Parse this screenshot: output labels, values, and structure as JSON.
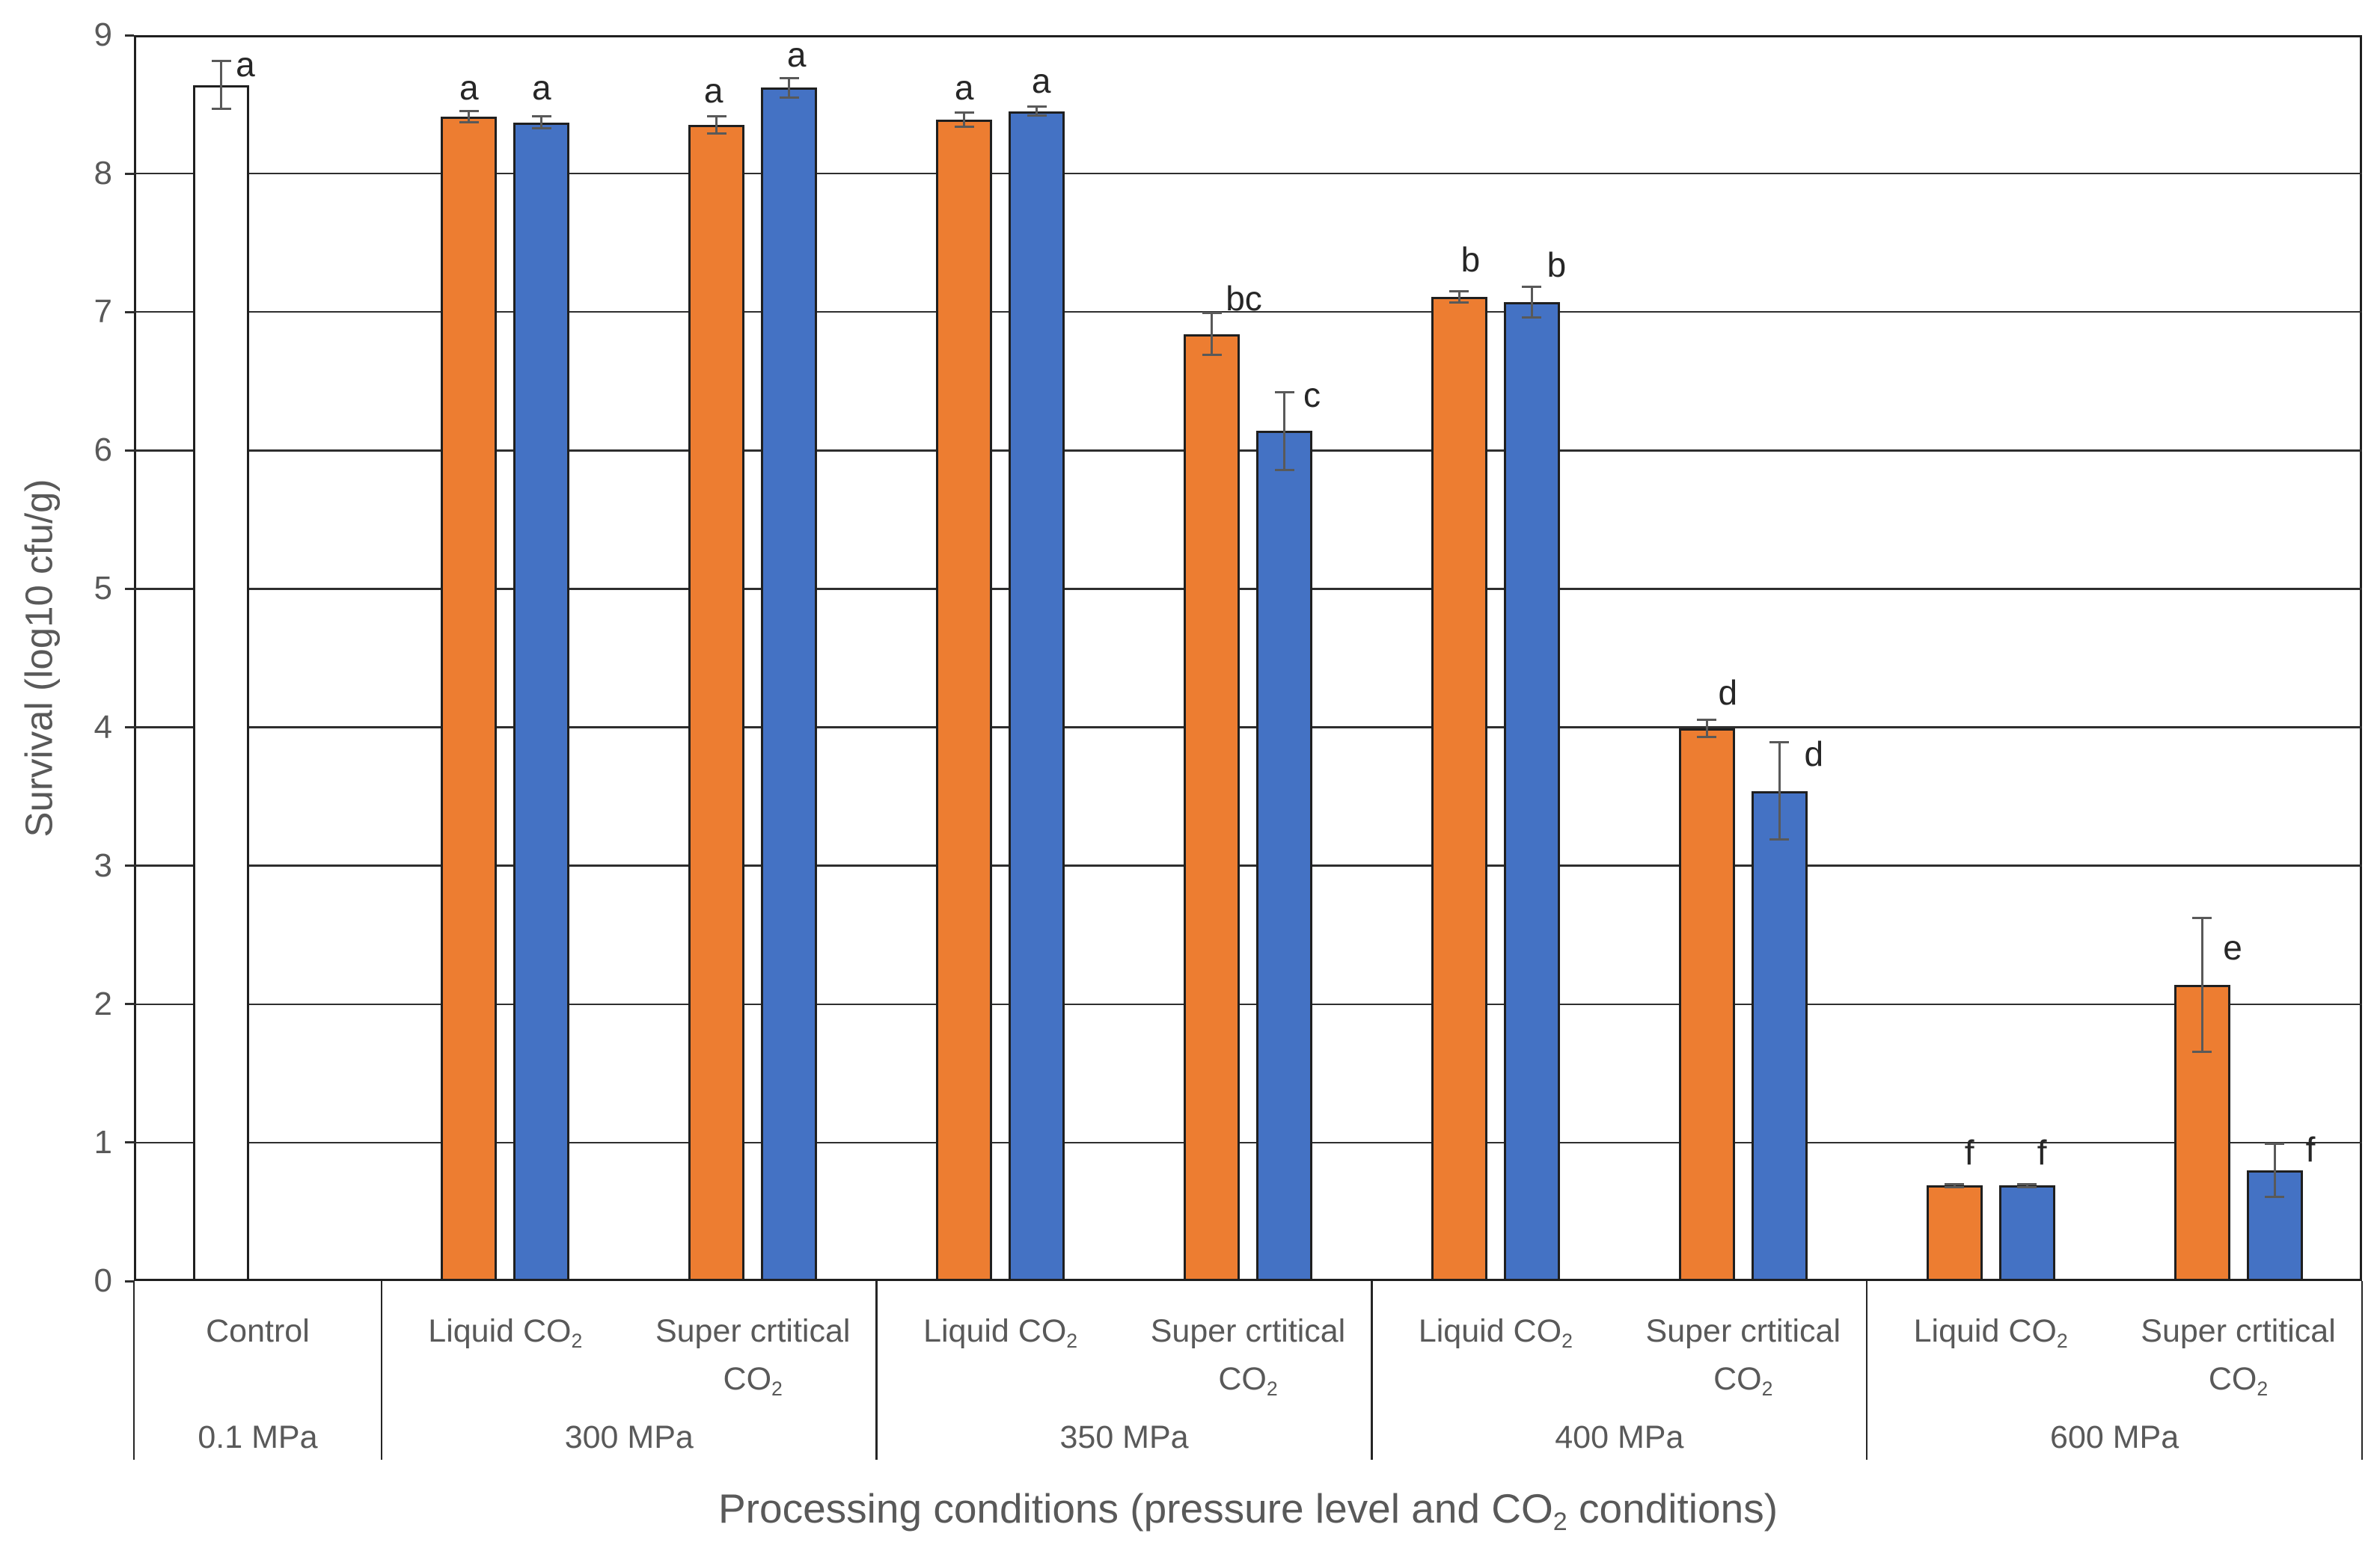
{
  "chart_data": {
    "type": "bar",
    "title": "",
    "ylabel": "Survival (log10 cfu/g)",
    "xlabel": "Processing conditions (pressure level and CO2 conditions)",
    "ylim": [
      0,
      9
    ],
    "yticks": [
      0,
      1,
      2,
      3,
      4,
      5,
      6,
      7,
      8,
      9
    ],
    "grid": true,
    "legend_position": "none",
    "colors": {
      "orange_series": "#ED7D31",
      "blue_series": "#4472C4",
      "control": "#FFFFFF",
      "bar_border": "#1F1F1F",
      "error_bar": "#595959",
      "gridline": "#2E2E2E",
      "text": "#595959",
      "letter": "#262626"
    },
    "groups": [
      {
        "pressure": "0.1 MPa",
        "conditions": [
          {
            "label_lines": [
              "Control"
            ],
            "bars": [
              {
                "fill": "control",
                "value": 8.64,
                "err": 0.18,
                "letter": "a",
                "letter_dx": 32,
                "letter_y": 8.79
              }
            ]
          }
        ]
      },
      {
        "pressure": "300 MPa",
        "conditions": [
          {
            "label_lines": [
              "Liquid CO2"
            ],
            "bars": [
              {
                "fill": "orange_series",
                "value": 8.41,
                "err": 0.05,
                "letter": "a",
                "letter_dx": 0,
                "letter_y": 8.62
              },
              {
                "fill": "blue_series",
                "value": 8.37,
                "err": 0.05,
                "letter": "a",
                "letter_dx": 0,
                "letter_y": 8.62
              }
            ]
          },
          {
            "label_lines": [
              "Super crtitical",
              "CO2"
            ],
            "bars": [
              {
                "fill": "orange_series",
                "value": 8.35,
                "err": 0.07,
                "letter": "a",
                "letter_dx": -4,
                "letter_y": 8.6
              },
              {
                "fill": "blue_series",
                "value": 8.62,
                "err": 0.08,
                "letter": "a",
                "letter_dx": 10,
                "letter_y": 8.86
              }
            ]
          }
        ]
      },
      {
        "pressure": "350 MPa",
        "conditions": [
          {
            "label_lines": [
              "Liquid CO2"
            ],
            "bars": [
              {
                "fill": "orange_series",
                "value": 8.39,
                "err": 0.06,
                "letter": "a",
                "letter_dx": 0,
                "letter_y": 8.62
              },
              {
                "fill": "blue_series",
                "value": 8.45,
                "err": 0.04,
                "letter": "a",
                "letter_dx": 6,
                "letter_y": 8.67
              }
            ]
          },
          {
            "label_lines": [
              "Super crtitical",
              "CO2"
            ],
            "bars": [
              {
                "fill": "orange_series",
                "value": 6.84,
                "err": 0.16,
                "letter": "bc",
                "letter_dx": 43,
                "letter_y": 7.1
              },
              {
                "fill": "blue_series",
                "value": 6.14,
                "err": 0.29,
                "letter": "c",
                "letter_dx": 37,
                "letter_y": 6.4
              }
            ]
          }
        ]
      },
      {
        "pressure": "400 MPa",
        "conditions": [
          {
            "label_lines": [
              "Liquid CO2"
            ],
            "bars": [
              {
                "fill": "orange_series",
                "value": 7.11,
                "err": 0.05,
                "letter": "b",
                "letter_dx": 15,
                "letter_y": 7.38
              },
              {
                "fill": "blue_series",
                "value": 7.07,
                "err": 0.12,
                "letter": "b",
                "letter_dx": 33,
                "letter_y": 7.34
              }
            ]
          },
          {
            "label_lines": [
              "Super crtitical",
              "CO2"
            ],
            "bars": [
              {
                "fill": "orange_series",
                "value": 3.99,
                "err": 0.07,
                "letter": "d",
                "letter_dx": 28,
                "letter_y": 4.25
              },
              {
                "fill": "blue_series",
                "value": 3.54,
                "err": 0.36,
                "letter": "d",
                "letter_dx": 46,
                "letter_y": 3.81
              }
            ]
          }
        ]
      },
      {
        "pressure": "600 MPa",
        "conditions": [
          {
            "label_lines": [
              "Liquid CO2"
            ],
            "bars": [
              {
                "fill": "orange_series",
                "value": 0.69,
                "err": 0.02,
                "letter": "f",
                "letter_dx": 20,
                "letter_y": 0.93
              },
              {
                "fill": "blue_series",
                "value": 0.69,
                "err": 0.02,
                "letter": "f",
                "letter_dx": 20,
                "letter_y": 0.93
              }
            ]
          },
          {
            "label_lines": [
              "Super crtitical",
              "CO2"
            ],
            "bars": [
              {
                "fill": "orange_series",
                "value": 2.14,
                "err": 0.49,
                "letter": "e",
                "letter_dx": 41,
                "letter_y": 2.41
              },
              {
                "fill": "blue_series",
                "value": 0.8,
                "err": 0.2,
                "letter": "f",
                "letter_dx": 48,
                "letter_y": 0.95
              }
            ]
          }
        ]
      }
    ]
  }
}
